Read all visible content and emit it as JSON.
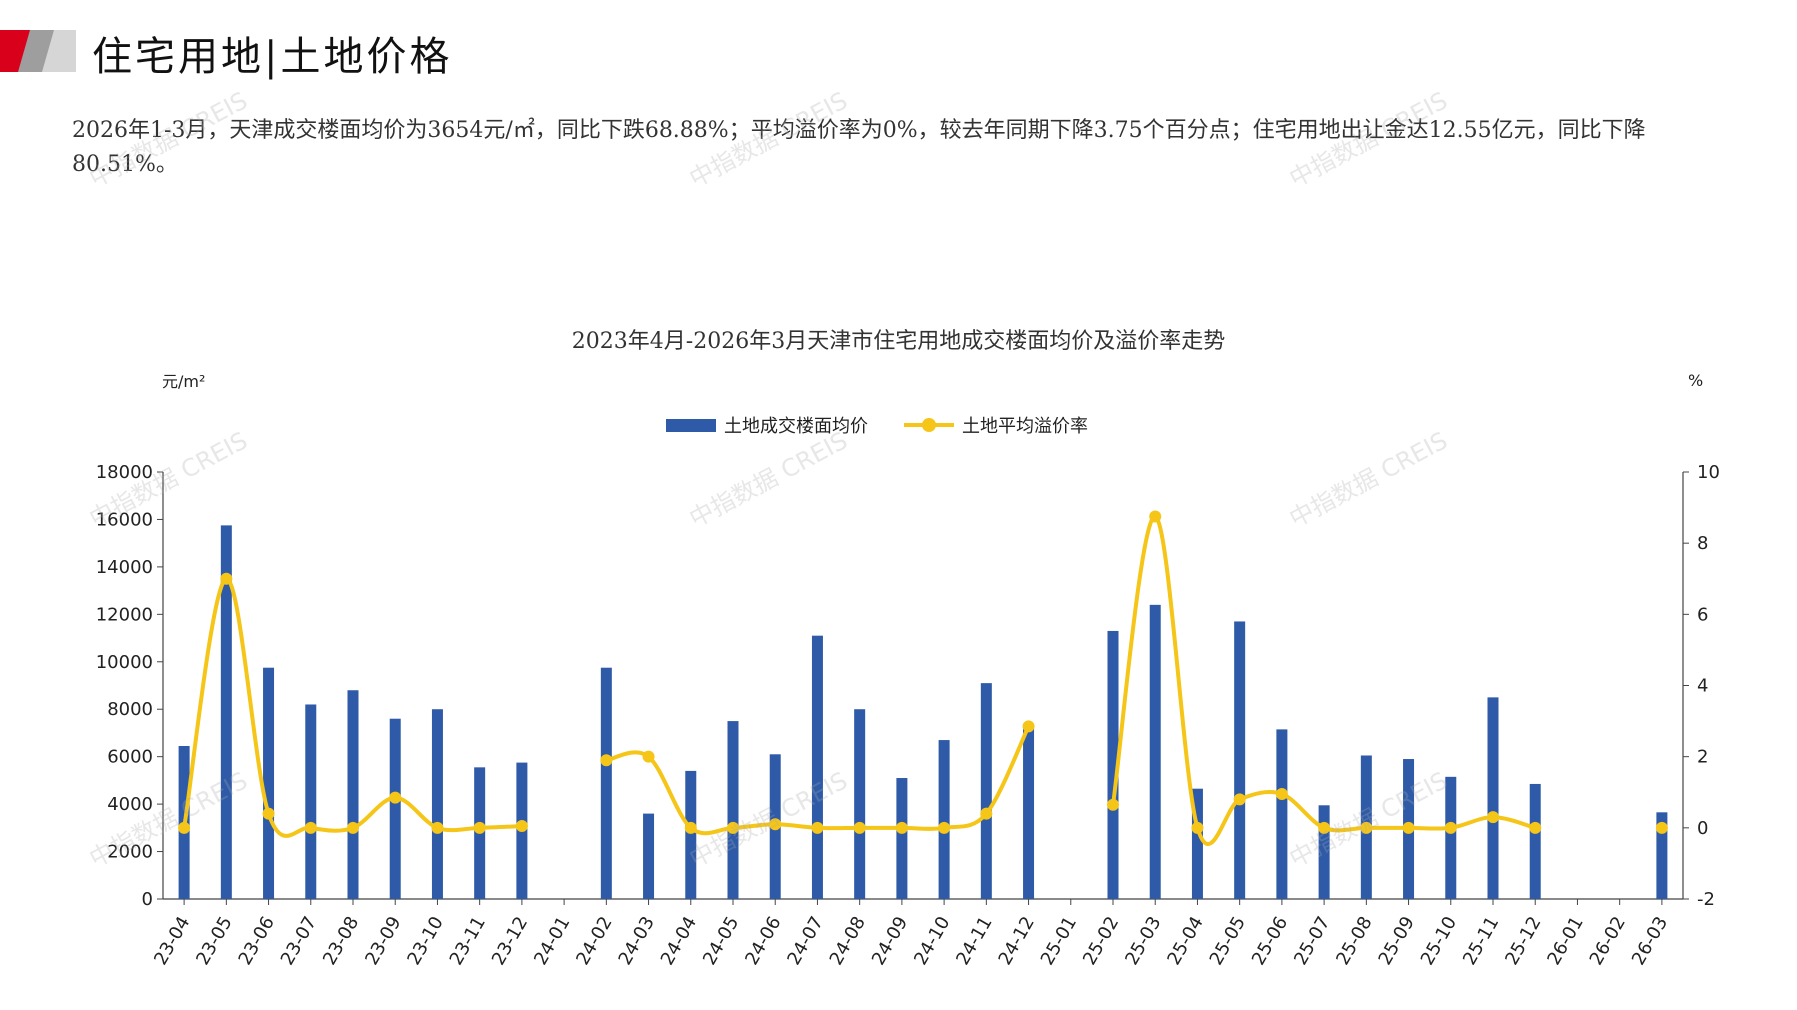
{
  "header": {
    "title": "住宅用地|土地价格"
  },
  "summary": "2026年1-3月，天津成交楼面均价为3654元/㎡，同比下跌68.88%；平均溢价率为0%，较去年同期下降3.75个百分点；住宅用地出让金达12.55亿元，同比下降80.51%。",
  "watermark": "中指数据 CREIS",
  "chart_data": {
    "type": "bar",
    "title": "2023年4月-2026年3月天津市住宅用地成交楼面均价及溢价率走势",
    "categories": [
      "23-04",
      "23-05",
      "23-06",
      "23-07",
      "23-08",
      "23-09",
      "23-10",
      "23-11",
      "23-12",
      "24-01",
      "24-02",
      "24-03",
      "24-04",
      "24-05",
      "24-06",
      "24-07",
      "24-08",
      "24-09",
      "24-10",
      "24-11",
      "24-12",
      "25-01",
      "25-02",
      "25-03",
      "25-04",
      "25-05",
      "25-06",
      "25-07",
      "25-08",
      "25-09",
      "25-10",
      "25-11",
      "25-12",
      "26-01",
      "26-02",
      "26-03"
    ],
    "y_left": {
      "unit": "元/m²",
      "range": [
        0,
        18000
      ],
      "ticks": [
        "0",
        "2000",
        "4000",
        "6000",
        "8000",
        "10000",
        "12000",
        "14000",
        "16000",
        "18000"
      ]
    },
    "y_right": {
      "unit": "%",
      "range": [
        -2,
        10
      ],
      "ticks": [
        "-2",
        "0",
        "2",
        "4",
        "6",
        "8",
        "10"
      ]
    },
    "series": [
      {
        "name": "土地成交楼面均价",
        "kind": "bar",
        "axis": "left",
        "color": "#2e5aa8",
        "values": [
          6450,
          15750,
          9750,
          8200,
          8800,
          7600,
          8000,
          5550,
          5750,
          null,
          9750,
          3600,
          5400,
          7500,
          6100,
          11100,
          8000,
          5100,
          6700,
          9100,
          7200,
          null,
          11300,
          12400,
          4650,
          11700,
          7150,
          3950,
          6050,
          5900,
          5150,
          8500,
          4850,
          null,
          null,
          3654
        ]
      },
      {
        "name": "土地平均溢价率",
        "kind": "line",
        "axis": "right",
        "color": "#f5c518",
        "values": [
          0,
          7.0,
          0.4,
          0,
          0,
          0.85,
          0,
          0,
          0.05,
          null,
          1.9,
          2.0,
          0,
          0,
          0.1,
          0,
          0,
          0,
          0,
          0.4,
          2.85,
          null,
          0.65,
          8.75,
          0,
          0.8,
          0.95,
          0,
          0,
          0,
          0,
          0.3,
          0,
          null,
          null,
          0
        ]
      }
    ],
    "legend": "top-center",
    "grid": false
  }
}
